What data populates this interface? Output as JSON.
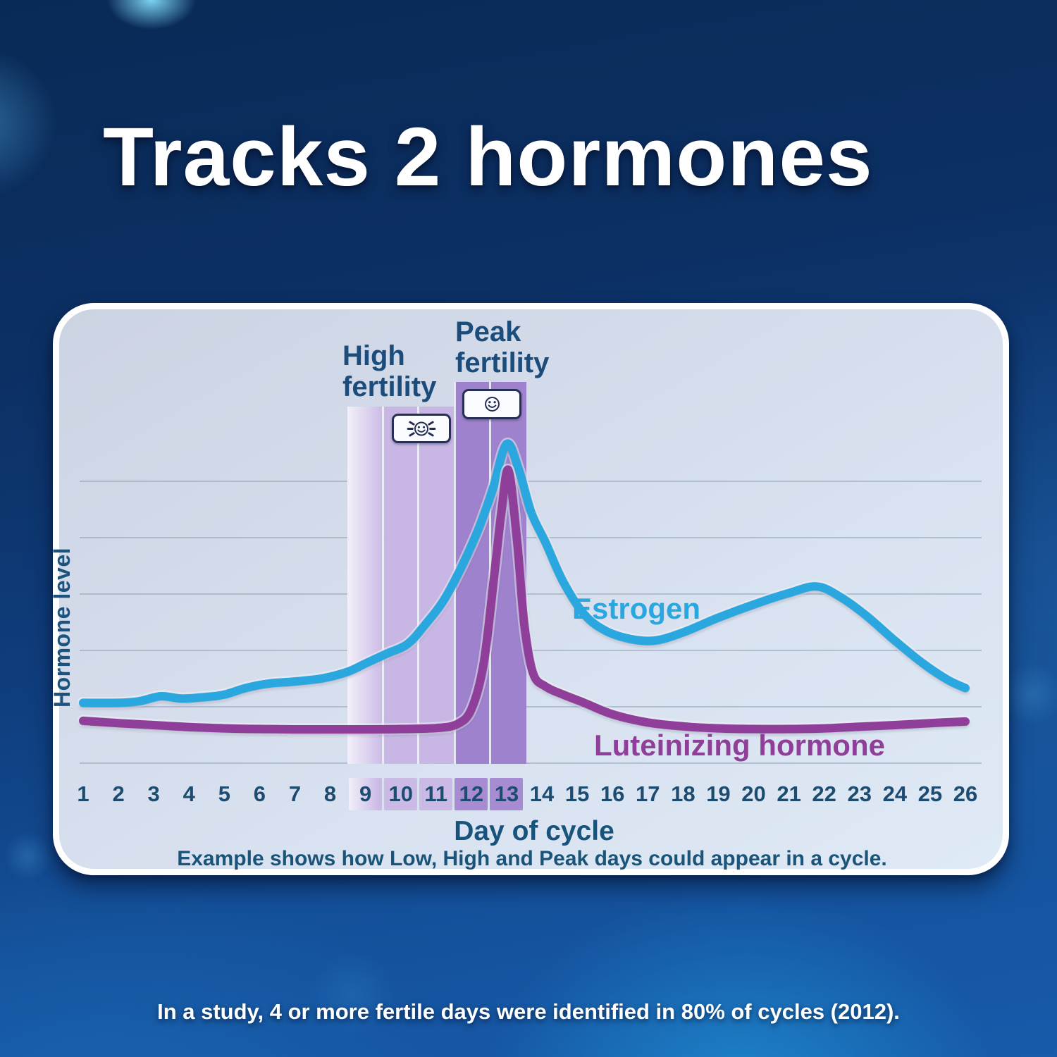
{
  "title": "Tracks 2 hormones",
  "footnote": "In a study, 4 or more fertile days were identified in 80% of cycles (2012).",
  "chart": {
    "y_axis_label": "Hormone level",
    "x_axis_label": "Day of cycle",
    "caption": "Example shows how Low, High and Peak days could appear in a cycle.",
    "annotations": {
      "high_fertility": "High fertility",
      "peak_fertility": "Peak fertility"
    },
    "icons": {
      "flashing_smiley": "flashing-smiley-icon",
      "solid_smiley": "smiley-icon"
    },
    "series_labels": {
      "estrogen": "Estrogen",
      "lh": "Luteinizing hormone"
    }
  },
  "chart_data": {
    "type": "line",
    "title": "Tracks 2 hormones",
    "xlabel": "Day of cycle",
    "ylabel": "Hormone level",
    "x_categories": [
      1,
      2,
      3,
      4,
      5,
      6,
      7,
      8,
      9,
      10,
      11,
      12,
      13,
      14,
      15,
      16,
      17,
      18,
      19,
      20,
      21,
      22,
      23,
      24,
      25,
      26
    ],
    "ylim": [
      0,
      105
    ],
    "grid": true,
    "gridline_count": 6,
    "legend_position": "inline-labels",
    "series": [
      {
        "name": "Estrogen",
        "color": "#2ba7e0",
        "points": [
          [
            1,
            21
          ],
          [
            2,
            21
          ],
          [
            2.6,
            21.5
          ],
          [
            3.2,
            23
          ],
          [
            3.8,
            22.3
          ],
          [
            4.5,
            22.8
          ],
          [
            5,
            23.5
          ],
          [
            5.6,
            25.5
          ],
          [
            6.2,
            26.8
          ],
          [
            7,
            27.5
          ],
          [
            7.8,
            28.5
          ],
          [
            8.5,
            30.5
          ],
          [
            9,
            33
          ],
          [
            9.6,
            36
          ],
          [
            10.2,
            39
          ],
          [
            10.7,
            45
          ],
          [
            11.2,
            52
          ],
          [
            11.7,
            62
          ],
          [
            12.2,
            74
          ],
          [
            12.6,
            86
          ],
          [
            13,
            100
          ],
          [
            13.35,
            92
          ],
          [
            13.7,
            79
          ],
          [
            14.1,
            70
          ],
          [
            14.6,
            58
          ],
          [
            15.2,
            48
          ],
          [
            15.8,
            43
          ],
          [
            16.5,
            40.5
          ],
          [
            17.2,
            40
          ],
          [
            18,
            42.5
          ],
          [
            19,
            47
          ],
          [
            20,
            51
          ],
          [
            21,
            54.5
          ],
          [
            21.8,
            56.5
          ],
          [
            22.5,
            53
          ],
          [
            23.2,
            47.5
          ],
          [
            24,
            40
          ],
          [
            24.8,
            33
          ],
          [
            25.5,
            28
          ],
          [
            26,
            25.5
          ]
        ]
      },
      {
        "name": "Luteinizing hormone",
        "color": "#8f3f99",
        "points": [
          [
            1,
            15.5
          ],
          [
            2,
            14.8
          ],
          [
            3,
            14.2
          ],
          [
            4,
            13.6
          ],
          [
            5,
            13.2
          ],
          [
            6,
            13
          ],
          [
            7,
            12.9
          ],
          [
            8,
            12.9
          ],
          [
            9,
            12.9
          ],
          [
            10,
            13
          ],
          [
            11,
            13.3
          ],
          [
            11.6,
            14.5
          ],
          [
            12,
            19
          ],
          [
            12.35,
            33
          ],
          [
            12.65,
            60
          ],
          [
            12.85,
            79
          ],
          [
            13.05,
            92
          ],
          [
            13.3,
            70
          ],
          [
            13.5,
            45
          ],
          [
            13.75,
            30
          ],
          [
            14.1,
            26
          ],
          [
            14.6,
            23.5
          ],
          [
            15.2,
            21
          ],
          [
            16,
            17.5
          ],
          [
            17,
            15
          ],
          [
            18,
            13.8
          ],
          [
            19,
            13.2
          ],
          [
            20,
            13
          ],
          [
            21,
            13
          ],
          [
            22,
            13.2
          ],
          [
            23,
            13.7
          ],
          [
            24,
            14.2
          ],
          [
            25,
            14.8
          ],
          [
            26,
            15.3
          ]
        ]
      }
    ],
    "bands": [
      {
        "name": "High fertility",
        "days": [
          9,
          11
        ],
        "color": "#c8b7e4",
        "fade_in_day": 9
      },
      {
        "name": "Peak fertility",
        "days": [
          12,
          13
        ],
        "color": "#9e82cd"
      }
    ],
    "day_highlights": {
      "high": [
        9,
        10,
        11
      ],
      "peak": [
        12,
        13
      ]
    },
    "cell_colors": {
      "high": "#cbbae6",
      "peak": "#a78bd3"
    }
  },
  "colors": {
    "background_navy": "#0b2d5e",
    "accent_glow": "#1a8fd0",
    "card_background": "#d5deec",
    "heading_text": "#ffffff",
    "chart_text": "#1b5076",
    "estrogen": "#2ba7e0",
    "lh": "#8f3f99"
  }
}
